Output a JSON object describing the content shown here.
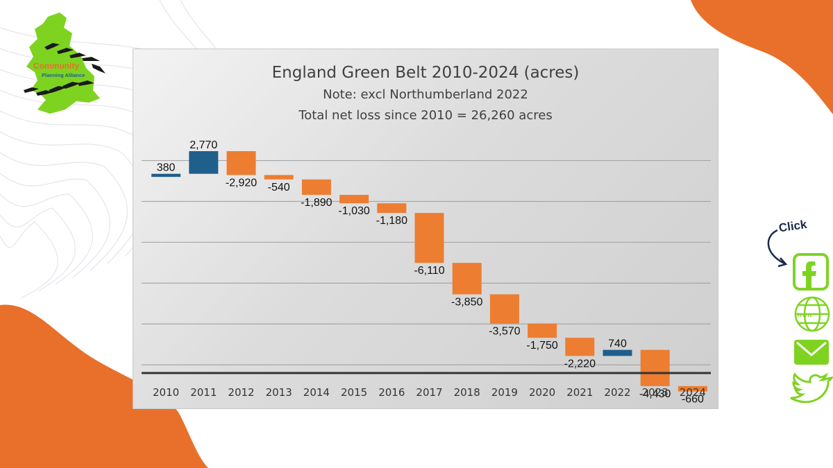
{
  "logo": {
    "line1": "Community",
    "line2": "Planning Alliance"
  },
  "social": {
    "click_label": "Click",
    "facebook_icon": "facebook-icon",
    "web_icon": "globe-icon",
    "web_text": "www.",
    "mail_icon": "mail-icon",
    "twitter_icon": "twitter-icon"
  },
  "colors": {
    "decrease": "#ED7D31",
    "increase": "#1F5F8B",
    "accent": "#E8702A",
    "green": "#7ED321"
  },
  "chart_data": {
    "type": "waterfall",
    "title": "England Green Belt 2010-2024 (acres)",
    "subtitle": [
      "Note: excl Northumberland 2022",
      "Total net loss since 2010 = 26,260 acres"
    ],
    "categories": [
      "2010",
      "2011",
      "2012",
      "2013",
      "2014",
      "2015",
      "2016",
      "2017",
      "2018",
      "2019",
      "2020",
      "2021",
      "2022",
      "2023",
      "2024"
    ],
    "values": [
      380,
      2770,
      -2920,
      -540,
      -1890,
      -1030,
      -1180,
      -6110,
      -3850,
      -3570,
      -1750,
      -2220,
      740,
      -4430,
      -660
    ],
    "labels": [
      "380",
      "2,770",
      "-2,920",
      "-540",
      "-1,890",
      "-1,030",
      "-1,180",
      "-6,110",
      "-3,850",
      "-3,570",
      "-1,750",
      "-2,220",
      "740",
      "-4,430",
      "-660"
    ],
    "ylim": [
      -24000,
      4000
    ],
    "gridlines": [
      2000,
      -3000,
      -8000,
      -13000,
      -18000,
      -23000
    ],
    "xlabel": "",
    "ylabel": "",
    "legend": "none"
  }
}
